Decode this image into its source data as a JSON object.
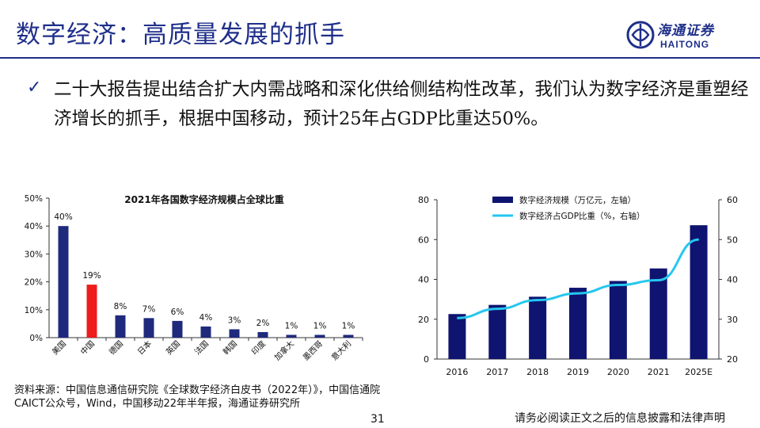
{
  "header": {
    "title": "数字经济：高质量发展的抓手",
    "logo_cn": "海通证券",
    "logo_en": "HAITONG"
  },
  "bullet": {
    "mark": "✓",
    "text": "二十大报告提出结合扩大内需战略和深化供给侧结构性改革，我们认为数字经济是重塑经济增长的抓手，根据中国移动，预计25年占GDP比重达50%。"
  },
  "chart_data": [
    {
      "type": "bar",
      "title": "2021年各国数字经济规模占全球比重",
      "categories": [
        "美国",
        "中国",
        "德国",
        "日本",
        "英国",
        "法国",
        "韩国",
        "印度",
        "加拿大",
        "墨西哥",
        "意大利"
      ],
      "values": [
        40,
        19,
        8,
        7,
        6,
        4,
        3,
        2,
        1,
        1,
        1
      ],
      "value_labels": [
        "40%",
        "19%",
        "8%",
        "7%",
        "6%",
        "4%",
        "3%",
        "2%",
        "1%",
        "1%",
        "1%"
      ],
      "highlight_index": 1,
      "ylim": [
        0,
        50
      ],
      "yticks": [
        0,
        10,
        20,
        30,
        40,
        50
      ],
      "ytick_labels": [
        "0%",
        "10%",
        "20%",
        "30%",
        "40%",
        "50%"
      ],
      "colors": {
        "bar": "#1f2a7c",
        "highlight": "#ee1c1c"
      }
    },
    {
      "type": "bar+line",
      "categories": [
        "2016",
        "2017",
        "2018",
        "2019",
        "2020",
        "2021",
        "2025E"
      ],
      "series": [
        {
          "name": "数字经济规模（万亿元，左轴）",
          "type": "bar",
          "axis": "left",
          "values": [
            22.6,
            27.2,
            31.3,
            35.8,
            39.2,
            45.5,
            67.2
          ]
        },
        {
          "name": "数字经济占GDP比重（%，右轴）",
          "type": "line",
          "axis": "right",
          "values": [
            30.3,
            32.6,
            34.8,
            36.5,
            38.6,
            39.8,
            50.0
          ]
        }
      ],
      "ylim_left": [
        0,
        80
      ],
      "yticks_left": [
        0,
        20,
        40,
        60,
        80
      ],
      "ylim_right": [
        20,
        60
      ],
      "yticks_right": [
        20,
        30,
        40,
        50,
        60
      ],
      "colors": {
        "bar": "#0f1470",
        "line": "#25c7f0"
      }
    }
  ],
  "footer": {
    "source": "资料来源：中国信息通信研究院《全球数字经济白皮书（2022年）》，中国信通院CAICT公众号，Wind，中国移动22年半年报，海通证券研究所",
    "page": "31",
    "disclaimer": "请务必阅读正文之后的信息披露和法律声明"
  }
}
